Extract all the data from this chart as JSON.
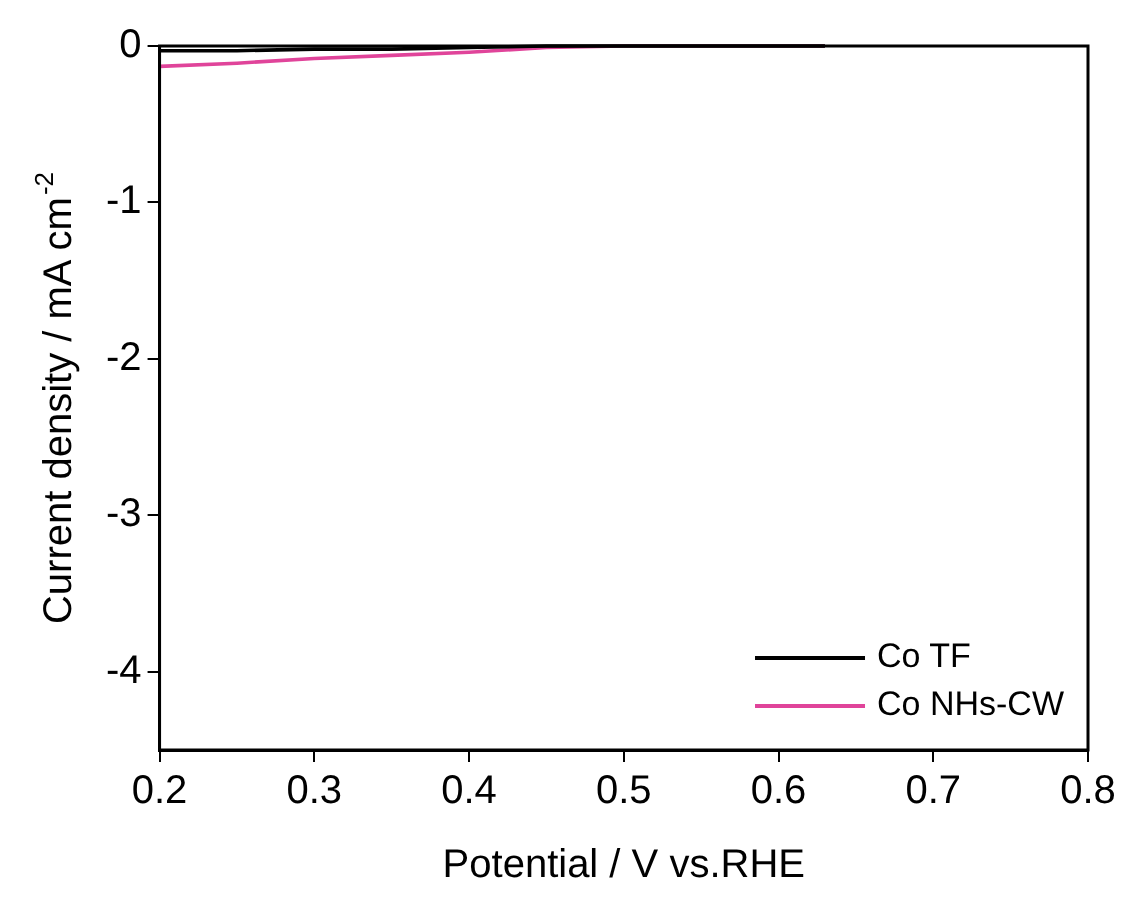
{
  "chart_data": {
    "type": "line",
    "xlabel": "Potential / V vs.RHE",
    "ylabel": "Current density / mA cm$^{-2}$",
    "xlim": [
      0.2,
      0.8
    ],
    "xticks": [
      0.2,
      0.3,
      0.4,
      0.5,
      0.6,
      0.7,
      0.8
    ],
    "ylim": [
      -4.5,
      0
    ],
    "yticks": [
      0,
      -1,
      -2,
      -3,
      -4
    ],
    "grid": false,
    "legend": "bottom right",
    "marker": "none",
    "line_style": "solid",
    "series": [
      {
        "name": "Co TF",
        "color": "#000000",
        "x": [
          0.2,
          0.25,
          0.3,
          0.35,
          0.4,
          0.45,
          0.5,
          0.55,
          0.63
        ],
        "values": [
          -0.03,
          -0.03,
          -0.02,
          -0.02,
          -0.01,
          0,
          0,
          0,
          0
        ]
      },
      {
        "name": "Co NHs-CW",
        "color": "#e0449a",
        "x": [
          0.2,
          0.25,
          0.3,
          0.35,
          0.4,
          0.45,
          0.5,
          0.55,
          0.63
        ],
        "values": [
          -0.13,
          -0.11,
          -0.08,
          -0.06,
          -0.04,
          -0.01,
          0,
          0,
          0
        ]
      }
    ]
  }
}
